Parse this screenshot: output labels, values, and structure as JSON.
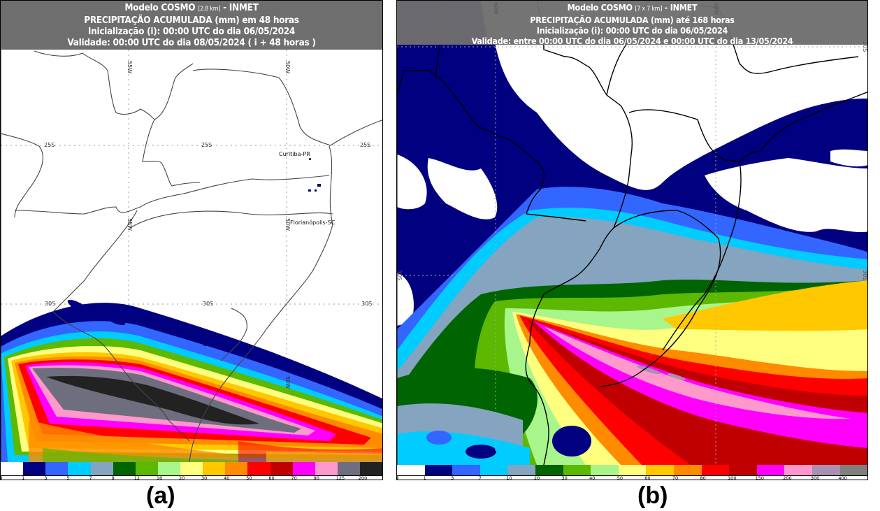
{
  "panels": {
    "a": {
      "caption": "(a)",
      "header": {
        "line1_prefix": "Modelo COSMO ",
        "line1_resolution": "[2.8 km]",
        "line1_suffix": " - INMET",
        "line2": "PRECIPITAÇÃO ACUMULADA (mm) em 48 horas",
        "line3": "Inicialização (i): 00:00 UTC do dia 06/05/2024",
        "line4": "Validade: 00:00 UTC do dia 08/05/2024 ( i + 48 horas )"
      },
      "grid_labels": {
        "lat_25s_left": "25S",
        "lat_25s_mid": "25S",
        "lat_25s_right": "25S",
        "lat_30s_left": "30S",
        "lat_30s_mid": "30S",
        "lat_30s_right": "30S",
        "lon_55w_top": "55W",
        "lon_55w_mid": "55W",
        "lon_50w_top": "50W",
        "lon_50w_mid": "50W",
        "lon_50w_low": "50W"
      },
      "cities": [
        {
          "name": "Curitiba-PR"
        },
        {
          "name": "Florianópolis-SC"
        }
      ],
      "colorbar": {
        "unit": "mm",
        "ticks": [
          "0",
          "1",
          "3",
          "5",
          "7",
          "9",
          "12",
          "16",
          "20",
          "30",
          "40",
          "50",
          "60",
          "70",
          "90",
          "125",
          "200"
        ],
        "colors": [
          "#ffffff",
          "#000080",
          "#3366ff",
          "#00ccff",
          "#84a4bf",
          "#006400",
          "#5cb800",
          "#a8f58c",
          "#ffff7f",
          "#ffc800",
          "#ff8c00",
          "#ff0000",
          "#c00000",
          "#ff00ff",
          "#ff99cc",
          "#6e6e7e",
          "#222222"
        ]
      }
    },
    "b": {
      "caption": "(b)",
      "header": {
        "line1_prefix": "Modelo COSMO ",
        "line1_resolution": "[7 x 7 km]",
        "line1_suffix": " - INMET",
        "line2": "PRECIPITAÇÃO ACUMULADA (mm) até 168 horas",
        "line3": "Inicialização (i): 00:00 UTC do dia 06/05/2024",
        "line4": "Validade: entre 00:00 UTC do dia 06/05/2024 e 00:00 UTC do dia 13/05/2024"
      },
      "grid_labels": {
        "lon_60w": "60W",
        "lon_50w": "50W",
        "lat_20s": "20S",
        "lat_30s_left": "30S",
        "lat_30s_right": "30S"
      },
      "colorbar": {
        "unit": "mm",
        "ticks": [
          "0",
          "1",
          "3",
          "7",
          "10",
          "20",
          "30",
          "40",
          "50",
          "60",
          "70",
          "80",
          "100",
          "150",
          "200",
          "300",
          "400"
        ],
        "colors": [
          "#ffffff",
          "#000080",
          "#3366ff",
          "#00ccff",
          "#84a4bf",
          "#006400",
          "#5cb800",
          "#a8f58c",
          "#ffff7f",
          "#ffc800",
          "#ff8c00",
          "#ff0000",
          "#c00000",
          "#ff00ff",
          "#ff99cc",
          "#a890b0",
          "#808080"
        ]
      }
    }
  }
}
